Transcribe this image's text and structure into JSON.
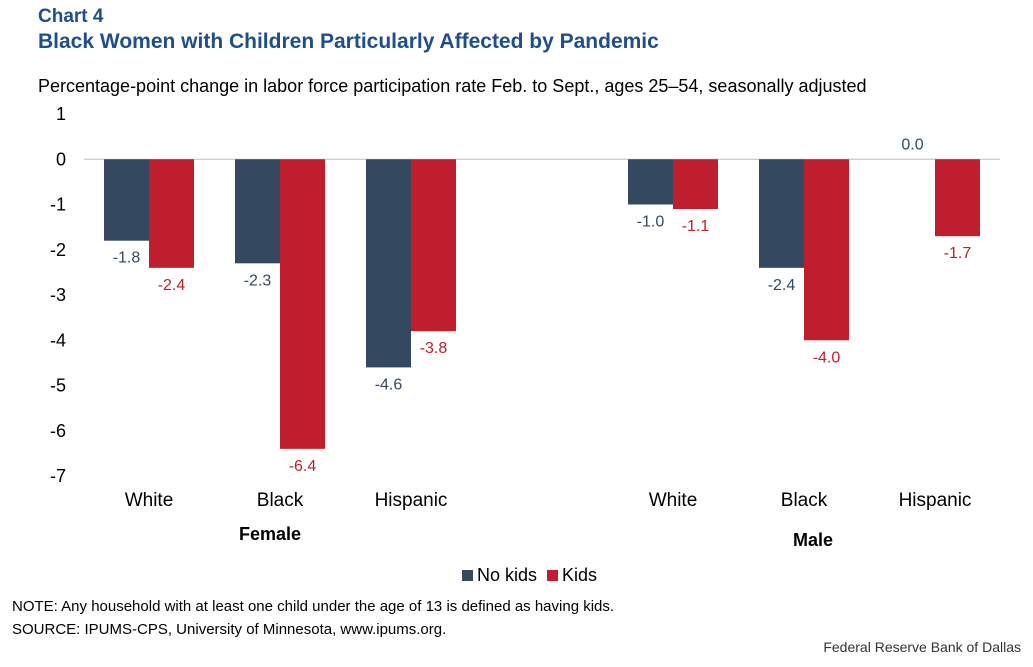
{
  "header": {
    "label": "Chart 4",
    "title": "Black Women with Children Particularly Affected by Pandemic",
    "subtitle": "Percentage-point change in labor force participation rate Feb. to Sept., ages 25–54, seasonally adjusted"
  },
  "chart_data": {
    "type": "bar",
    "title": "Black Women with Children Particularly Affected by Pandemic",
    "subtitle": "Percentage-point change in labor force participation rate Feb. to Sept., ages 25–54, seasonally adjusted",
    "xlabel": "",
    "ylabel": "",
    "ylim": [
      -7,
      1
    ],
    "yticks": [
      "1",
      "0",
      "-1",
      "-2",
      "-3",
      "-4",
      "-5",
      "-6",
      "-7"
    ],
    "grid": false,
    "legend_position": "bottom",
    "groups": [
      "Female",
      "Male"
    ],
    "categories": [
      "White",
      "Black",
      "Hispanic",
      "White",
      "Black",
      "Hispanic"
    ],
    "series": [
      {
        "name": "No kids",
        "color": "#344960",
        "values": [
          -1.8,
          -2.3,
          -4.6,
          -1.0,
          -2.4,
          0.0
        ],
        "labels": [
          "-1.8",
          "-2.3",
          "-4.6",
          "-1.0",
          "-2.4",
          "0.0"
        ]
      },
      {
        "name": "Kids",
        "color": "#be1e2d",
        "values": [
          -2.4,
          -6.4,
          -3.8,
          -1.1,
          -4.0,
          -1.7
        ],
        "labels": [
          "-2.4",
          "-6.4",
          "-3.8",
          "-1.1",
          "-4.0",
          "-1.7"
        ]
      }
    ]
  },
  "legend": {
    "no_kids": "No kids",
    "kids": "Kids",
    "no_kids_color": "#344960",
    "kids_color": "#be1e2d"
  },
  "footer": {
    "note": "NOTE: Any household with at least one child under the age of 13 is defined as having kids.",
    "source": "SOURCE: IPUMS-CPS, University of Minnesota, www.ipums.org.",
    "credit": "Federal Reserve Bank of Dallas"
  }
}
